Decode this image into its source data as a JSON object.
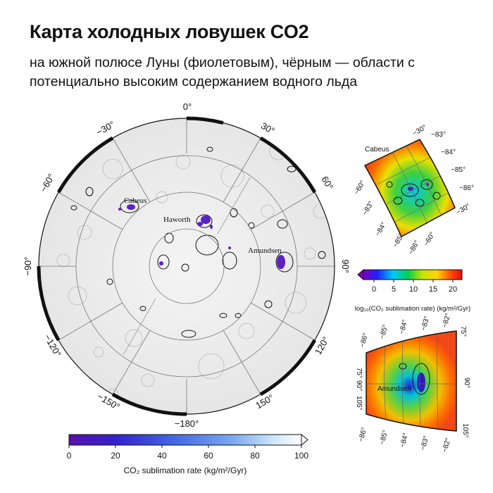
{
  "title": "Карта холодных ловушек CO2",
  "subtitle": "на южной полюсе Луны (фиолетовым), чёрным — области с потенциально высоким содержанием водного льда",
  "main_map": {
    "longitude_labels": {
      "top": "0°",
      "top_right": "30°",
      "right_upper": "60°",
      "right": "90°",
      "right_lower": "120°",
      "bottom_right": "150°",
      "bottom": "−180°",
      "bottom_left": "−150°",
      "left_lower": "−120°",
      "left": "−90°",
      "left_upper": "−60°",
      "top_left": "−30°"
    },
    "crater_labels": {
      "cabeus": "Cabeus",
      "haworth": "Haworth",
      "amundsen": "Amundsen"
    },
    "colorbar": {
      "ticks": [
        "0",
        "20",
        "40",
        "60",
        "80",
        "100"
      ],
      "label": "CO₂ sublimation rate (kg/m²/Gyr)",
      "colors": [
        "#5b0fb0",
        "#3322cc",
        "#4466e6",
        "#77a8f2",
        "#cce6fb",
        "#ffffff"
      ]
    }
  },
  "inset_cabeus": {
    "name": "Cabeus",
    "lat_labels": {
      "a": "−83°",
      "b": "−84°",
      "c": "−85°",
      "d": "−86°"
    },
    "lat_labels_bottom": {
      "a": "−83°",
      "b": "−84°",
      "c": "−85°",
      "d": "−86°"
    },
    "lon_labels": {
      "top": "−30°",
      "right": "−30°",
      "left": "−60°",
      "bottom": "−60°"
    }
  },
  "log_colorbar": {
    "ticks": [
      "0",
      "5",
      "10",
      "15",
      "20"
    ],
    "label": "log₁₀(CO₂ sublimation rate) (kg/m²/Gyr)",
    "colors": [
      "#7a00b8",
      "#2020ff",
      "#00c8ff",
      "#00d050",
      "#c8e600",
      "#ffd000",
      "#ff4000",
      "#e01010"
    ]
  },
  "inset_amundsen": {
    "name": "Amundsen",
    "lat_labels_top": {
      "a": "−86°",
      "b": "−85°",
      "c": "−84°",
      "d": "−83°",
      "e": "−82°"
    },
    "lat_labels_bottom": {
      "a": "−86°",
      "b": "−85°",
      "c": "−84°",
      "d": "−83°",
      "e": "−82°"
    },
    "lon_labels": {
      "left_top": "75°",
      "left_mid": "90°",
      "left_bottom": "105°",
      "right_top": "75°",
      "right_mid": "90°",
      "right_bottom": "105°"
    }
  }
}
